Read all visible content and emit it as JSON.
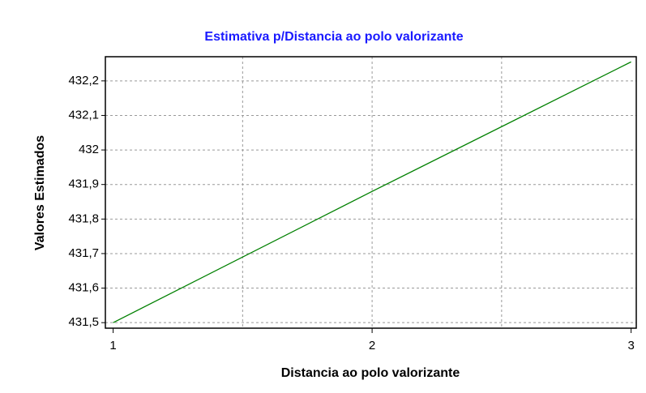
{
  "chart_data": {
    "type": "line",
    "title": "Estimativa p/Distancia ao polo valorizante",
    "x_label": "Distancia ao polo valorizante",
    "y_label": "Valores Estimados",
    "x": [
      1,
      2,
      3
    ],
    "series": [
      {
        "name": "Estimativa",
        "color": "#008000",
        "values": [
          431.5,
          431.88,
          432.255
        ]
      }
    ],
    "xlim": [
      0.97,
      3.02
    ],
    "xticks": [
      1,
      2,
      3
    ],
    "xgrid": [
      1.5,
      2,
      2.5
    ],
    "ylim": [
      431.484,
      432.27
    ],
    "yticks": [
      {
        "value": 431.5,
        "label": "431,5"
      },
      {
        "value": 431.6,
        "label": "431,6"
      },
      {
        "value": 431.7,
        "label": "431,7"
      },
      {
        "value": 431.8,
        "label": "431,8"
      },
      {
        "value": 431.9,
        "label": "431,9"
      },
      432,
      {
        "value": 432.1,
        "label": "432,1"
      },
      {
        "value": 432.2,
        "label": "432,2"
      }
    ],
    "grid": true
  }
}
